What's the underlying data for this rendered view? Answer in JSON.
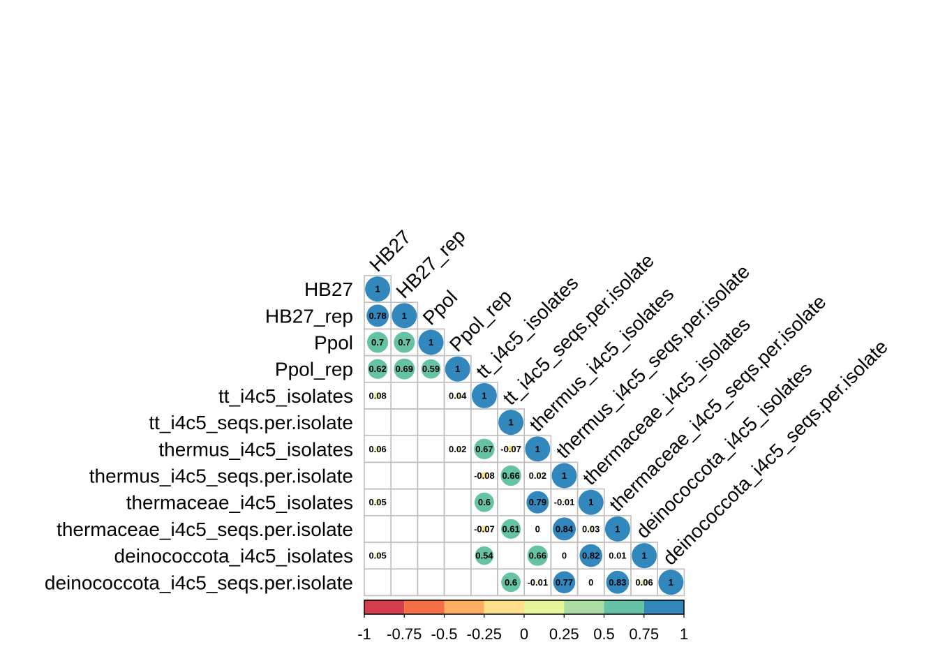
{
  "chart_data": {
    "type": "heatmap",
    "style": "correlation-circles-lower-triangle",
    "variables": [
      "HB27",
      "HB27_rep",
      "Ppol",
      "Ppol_rep",
      "tt_i4c5_isolates",
      "tt_i4c5_seqs.per.isolate",
      "thermus_i4c5_isolates",
      "thermus_i4c5_seqs.per.isolate",
      "thermaceae_i4c5_isolates",
      "thermaceae_i4c5_seqs.per.isolate",
      "deinococcota_i4c5_isolates",
      "deinococcota_i4c5_seqs.per.isolate"
    ],
    "matrix": [
      [
        1
      ],
      [
        0.78,
        1
      ],
      [
        0.7,
        0.7,
        1
      ],
      [
        0.62,
        0.69,
        0.59,
        1
      ],
      [
        0.08,
        null,
        null,
        0.04,
        1
      ],
      [
        null,
        null,
        null,
        null,
        null,
        1
      ],
      [
        0.06,
        null,
        null,
        0.02,
        0.67,
        -0.07,
        1
      ],
      [
        null,
        null,
        null,
        null,
        -0.08,
        0.66,
        0.02,
        1
      ],
      [
        0.05,
        null,
        null,
        null,
        0.6,
        null,
        0.79,
        -0.01,
        1
      ],
      [
        null,
        null,
        null,
        null,
        -0.07,
        0.61,
        0,
        0.84,
        0.03,
        1
      ],
      [
        0.05,
        null,
        null,
        null,
        0.54,
        null,
        0.66,
        0,
        0.82,
        0.01,
        1
      ],
      [
        null,
        null,
        null,
        null,
        null,
        0.6,
        -0.01,
        0.77,
        0,
        0.83,
        0.06,
        1
      ]
    ],
    "colorbar": {
      "range": [
        -1,
        1
      ],
      "tick_labels": [
        "-1",
        "-0.75",
        "-0.5",
        "-0.25",
        "0",
        "0.25",
        "0.5",
        "0.75",
        "1"
      ],
      "colors": [
        "#d53e4f",
        "#f46d43",
        "#fdae61",
        "#fee08b",
        "#e6f598",
        "#abdda4",
        "#66c2a5",
        "#3288bd"
      ]
    },
    "legend_position": "bottom"
  }
}
